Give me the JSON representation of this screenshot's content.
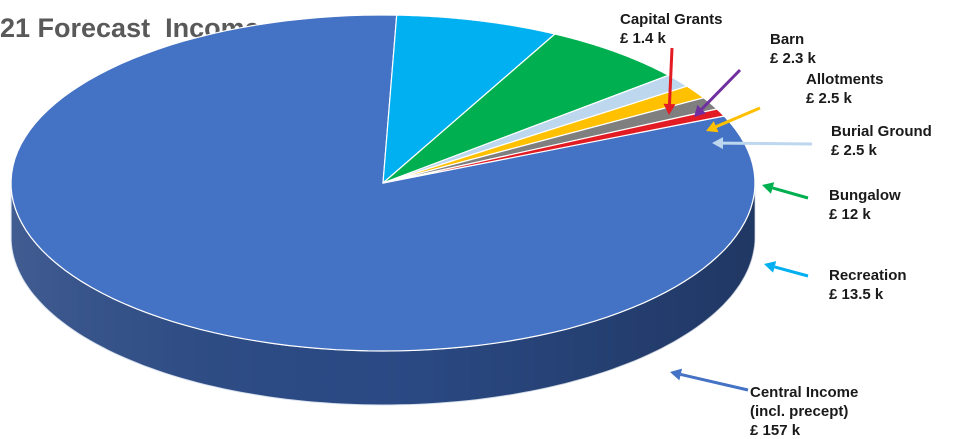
{
  "chart_data": {
    "type": "pie",
    "title": "21 Forecast  Income",
    "currency": "£",
    "unit": "k",
    "slices": [
      {
        "name": "Central Income (incl. precept)",
        "label_lines": [
          "Central Income",
          "(incl. precept)",
          "£ 157 k"
        ],
        "value": 157,
        "color": "#4472C4",
        "side_color": "#2B4A85",
        "arrow_color": "#4472C4"
      },
      {
        "name": "Recreation",
        "label_lines": [
          "Recreation",
          "£ 13.5 k"
        ],
        "value": 13.5,
        "color": "#00B0F0",
        "side_color": "#0A4D66",
        "arrow_color": "#00B0F0"
      },
      {
        "name": "Bungalow",
        "label_lines": [
          "Bungalow",
          "£ 12 k"
        ],
        "value": 12,
        "color": "#00B050",
        "side_color": "#005C2A",
        "arrow_color": "#00B050"
      },
      {
        "name": "Burial Ground",
        "label_lines": [
          "Burial Ground",
          "£ 2.5 k"
        ],
        "value": 2.5,
        "color": "#BDD7EE",
        "side_color": "#7F97AD",
        "arrow_color": "#BDD7EE"
      },
      {
        "name": "Allotments",
        "label_lines": [
          "Allotments",
          "£ 2.5 k"
        ],
        "value": 2.5,
        "color": "#FFC000",
        "side_color": "#A07A00",
        "arrow_color": "#FFC000"
      },
      {
        "name": "Barn",
        "label_lines": [
          "Barn",
          "£ 2.3 k"
        ],
        "value": 2.3,
        "color": "#7F7F7F",
        "side_color": "#4A4A4A",
        "arrow_color": "#7030A0"
      },
      {
        "name": "Capital Grants",
        "label_lines": [
          "Capital Grants",
          "£ 1.4 k"
        ],
        "value": 1.4,
        "color": "#E31B23",
        "side_color": "#8A0F14",
        "arrow_color": "#E31B23"
      }
    ]
  }
}
